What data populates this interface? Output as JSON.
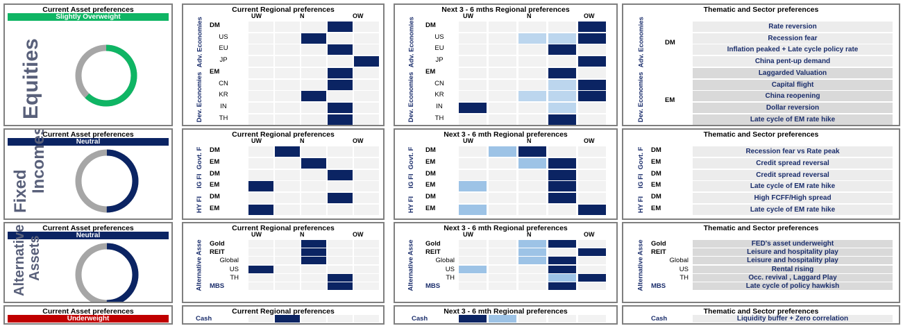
{
  "colors": {
    "navy": "#0b2463",
    "light": "#9dc3e6",
    "pale": "#bcd6ee",
    "empty": "#f2f2f2",
    "green": "#0fb564",
    "red": "#c00000",
    "gray": "#a6a6a6"
  },
  "sections": [
    {
      "id": "equities",
      "asset_title": "Current Asset preferences",
      "stance": "Slightly Overweight",
      "stance_color": "#0fb564",
      "big_label_lines": [
        "Equities"
      ],
      "donut": {
        "color": "#0fb564",
        "fraction": 0.62
      },
      "regional": {
        "title": "Current Regional preferences",
        "cols": [
          "UW",
          "N",
          "OW"
        ],
        "groups": [
          "Adv. Economies",
          "Dev. Economies"
        ],
        "rows": [
          {
            "label": "DM",
            "bold": true,
            "cells": [
              0,
              0,
              0,
              1,
              0
            ]
          },
          {
            "label": "US",
            "bold": false,
            "cells": [
              0,
              0,
              1,
              0,
              0
            ]
          },
          {
            "label": "EU",
            "bold": false,
            "cells": [
              0,
              0,
              0,
              1,
              0
            ]
          },
          {
            "label": "JP",
            "bold": false,
            "cells": [
              0,
              0,
              0,
              0,
              1
            ]
          },
          {
            "label": "EM",
            "bold": true,
            "cells": [
              0,
              0,
              0,
              1,
              0
            ]
          },
          {
            "label": "CN",
            "bold": false,
            "cells": [
              0,
              0,
              0,
              1,
              0
            ]
          },
          {
            "label": "KR",
            "bold": false,
            "cells": [
              0,
              0,
              1,
              0,
              0
            ]
          },
          {
            "label": "IN",
            "bold": false,
            "cells": [
              0,
              0,
              0,
              1,
              0
            ]
          },
          {
            "label": "TH",
            "bold": false,
            "cells": [
              0,
              0,
              0,
              1,
              0
            ]
          }
        ]
      },
      "next": {
        "title": "Next 3 - 6 mths  Regional preferences",
        "cols": [
          "UW",
          "N",
          "OW"
        ],
        "groups": [
          "Adv. Economies",
          "Dev. Economies"
        ],
        "rows": [
          {
            "label": "DM",
            "bold": true,
            "cells": [
              0,
              0,
              0,
              0,
              1
            ]
          },
          {
            "label": "US",
            "bold": false,
            "cells": [
              0,
              0,
              3,
              3,
              1
            ]
          },
          {
            "label": "EU",
            "bold": false,
            "cells": [
              0,
              0,
              0,
              1,
              0
            ]
          },
          {
            "label": "JP",
            "bold": false,
            "cells": [
              0,
              0,
              0,
              0,
              1
            ]
          },
          {
            "label": "EM",
            "bold": true,
            "cells": [
              0,
              0,
              0,
              1,
              0
            ]
          },
          {
            "label": "CN",
            "bold": false,
            "cells": [
              0,
              0,
              0,
              3,
              1
            ]
          },
          {
            "label": "KR",
            "bold": false,
            "cells": [
              0,
              0,
              3,
              3,
              1
            ]
          },
          {
            "label": "IN",
            "bold": false,
            "cells": [
              1,
              0,
              0,
              3,
              0
            ]
          },
          {
            "label": "TH",
            "bold": false,
            "cells": [
              0,
              0,
              0,
              1,
              0
            ]
          }
        ]
      },
      "thematic": {
        "title": "Thematic and Sector preferences",
        "groups": [
          "Adv. Economies",
          "Dev. Economies"
        ],
        "group_labels": [
          {
            "label": "DM",
            "row": 1
          },
          {
            "label": "EM",
            "row": 6
          }
        ],
        "row_labels": [],
        "items": [
          "Rate reversion",
          "Recession fear",
          "Inflation peaked + Late cycle policy rate",
          "China pent-up demand",
          "Laggarded Valuation",
          "Capital flight",
          "China reopening",
          "Dollar reversion",
          "Late cycle of EM rate hike"
        ],
        "dark": [
          false,
          false,
          false,
          false,
          true,
          true,
          true,
          true,
          true
        ]
      }
    },
    {
      "id": "fixed",
      "asset_title": "Current Asset preferences",
      "stance": "Neutral",
      "stance_color": "#0b2463",
      "big_label_lines": [
        "Fixed",
        "Incomes"
      ],
      "donut": {
        "color": "#0b2463",
        "fraction": 0.5
      },
      "regional": {
        "title": "Current Regional preferences",
        "cols": [
          "UW",
          "N",
          "OW"
        ],
        "groups": [
          "Govt. F",
          "IG FI",
          "HY FI"
        ],
        "rows": [
          {
            "label": "DM",
            "bold": true,
            "cells": [
              0,
              1,
              0,
              0,
              0
            ]
          },
          {
            "label": "EM",
            "bold": true,
            "cells": [
              0,
              0,
              1,
              0,
              0
            ]
          },
          {
            "label": "DM",
            "bold": true,
            "cells": [
              0,
              0,
              0,
              1,
              0
            ]
          },
          {
            "label": "EM",
            "bold": true,
            "cells": [
              1,
              0,
              0,
              0,
              0
            ]
          },
          {
            "label": "DM",
            "bold": true,
            "cells": [
              0,
              0,
              0,
              1,
              0
            ]
          },
          {
            "label": "EM",
            "bold": true,
            "cells": [
              1,
              0,
              0,
              0,
              0
            ]
          }
        ]
      },
      "next": {
        "title": "Next 3 - 6 mth  Regional preferences",
        "cols": [
          "UW",
          "N",
          "OW"
        ],
        "groups": [
          "Govt. F",
          "IG FI",
          "HY FI"
        ],
        "rows": [
          {
            "label": "DM",
            "bold": true,
            "cells": [
              0,
              2,
              1,
              0,
              0
            ]
          },
          {
            "label": "EM",
            "bold": true,
            "cells": [
              0,
              0,
              2,
              1,
              0
            ]
          },
          {
            "label": "DM",
            "bold": true,
            "cells": [
              0,
              0,
              0,
              1,
              0
            ]
          },
          {
            "label": "EM",
            "bold": true,
            "cells": [
              2,
              0,
              0,
              1,
              0
            ]
          },
          {
            "label": "DM",
            "bold": true,
            "cells": [
              0,
              0,
              0,
              1,
              0
            ]
          },
          {
            "label": "EM",
            "bold": true,
            "cells": [
              2,
              0,
              0,
              0,
              1
            ]
          }
        ]
      },
      "thematic": {
        "title": "Thematic and Sector preferences",
        "groups": [
          "Govt. F",
          "IG FI",
          "HY FI"
        ],
        "group_labels": [],
        "row_labels": [
          "DM",
          "EM",
          "DM",
          "EM",
          "DM",
          "EM"
        ],
        "items": [
          "Recession fear vs Rate peak",
          "Credit spread reversal",
          "Credit spread reversal",
          "Late cycle of EM rate hike",
          "High FCFF/High spread",
          "Late cycle of EM rate hike"
        ],
        "dark": [
          false,
          false,
          false,
          false,
          false,
          false
        ]
      }
    },
    {
      "id": "alternative",
      "asset_title": "Current Asset preferences",
      "stance": "Neutral",
      "stance_color": "#0b2463",
      "big_label_lines": [
        "Alternative",
        "Assets"
      ],
      "donut": {
        "color": "#0b2463",
        "fraction": 0.5
      },
      "regional": {
        "title": "Current Regional preferences",
        "cols": [
          "UW",
          "N",
          "OW"
        ],
        "groups": [
          "Alternative Asse"
        ],
        "rows": [
          {
            "label": "Gold",
            "style": "bold",
            "cells": [
              0,
              0,
              1,
              0,
              0
            ]
          },
          {
            "label": "REIT",
            "style": "bold",
            "cells": [
              0,
              0,
              1,
              0,
              0
            ]
          },
          {
            "label": "Global",
            "style": "right",
            "cells": [
              0,
              0,
              1,
              0,
              0
            ]
          },
          {
            "label": "US",
            "style": "right",
            "cells": [
              1,
              0,
              0,
              0,
              0
            ]
          },
          {
            "label": "TH",
            "style": "right",
            "cells": [
              0,
              0,
              0,
              1,
              0
            ]
          },
          {
            "label": "MBS",
            "style": "blue",
            "cells": [
              0,
              0,
              0,
              1,
              0
            ]
          }
        ]
      },
      "next": {
        "title": "Next 3 - 6 mth  Regional preferences",
        "cols": [
          "UW",
          "N",
          "OW"
        ],
        "groups": [
          "Alternative Asse"
        ],
        "rows": [
          {
            "label": "Gold",
            "style": "bold",
            "cells": [
              0,
              0,
              2,
              1,
              0
            ]
          },
          {
            "label": "REIT",
            "style": "bold",
            "cells": [
              0,
              0,
              2,
              0,
              1
            ]
          },
          {
            "label": "Global",
            "style": "right",
            "cells": [
              0,
              0,
              2,
              1,
              0
            ]
          },
          {
            "label": "US",
            "style": "right",
            "cells": [
              2,
              0,
              0,
              1,
              0
            ]
          },
          {
            "label": "TH",
            "style": "right",
            "cells": [
              0,
              0,
              0,
              2,
              1
            ]
          },
          {
            "label": "MBS",
            "style": "blue",
            "cells": [
              0,
              0,
              0,
              1,
              0
            ]
          }
        ]
      },
      "thematic": {
        "title": "Thematic and Sector preferences",
        "groups": [
          "Alternative Asse"
        ],
        "group_labels": [],
        "row_labels": [
          "Gold",
          "REIT",
          "Global",
          "US",
          "TH",
          "MBS"
        ],
        "row_label_styles": [
          "bold",
          "bold",
          "right",
          "right",
          "right",
          "blue"
        ],
        "items": [
          "FED's asset underweight",
          "Leisure and hospitality play",
          "Leisure and hospitality play",
          "Rental rising",
          "Occ. revival , Laggard Play",
          "Late cycle of policy hawkish"
        ],
        "dark": [
          true,
          true,
          true,
          true,
          true,
          true
        ]
      }
    },
    {
      "id": "cash",
      "asset_title": "Current Asset preferences",
      "stance": "Underweight",
      "stance_color": "#c00000",
      "regional": {
        "title": "Current Regional preferences",
        "rows": [
          {
            "label": "Cash",
            "style": "blue",
            "cells": [
              0,
              1,
              0,
              0,
              0
            ]
          }
        ]
      },
      "next": {
        "title": "Next 3 - 6 mth  Regional preferences",
        "rows": [
          {
            "label": "Cash",
            "style": "blue",
            "cells": [
              1,
              2,
              0,
              0,
              0
            ]
          }
        ]
      },
      "thematic": {
        "title": "Thematic and Sector preferences",
        "row_labels": [
          "Cash"
        ],
        "row_label_styles": [
          "blue"
        ],
        "items": [
          "Liquidity buffer + Zero correlation"
        ],
        "dark": [
          false
        ]
      }
    }
  ]
}
